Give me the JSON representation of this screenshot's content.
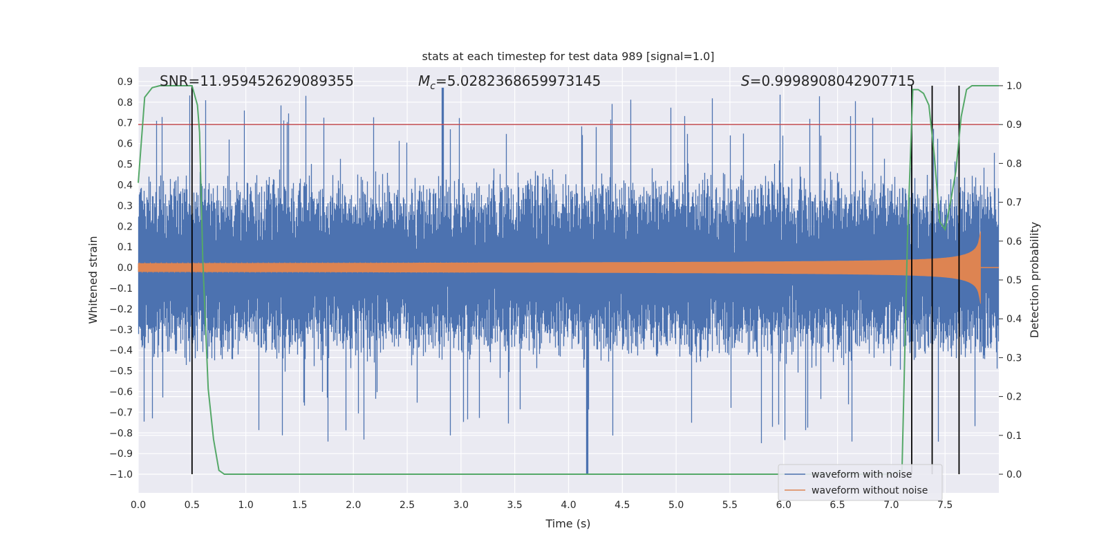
{
  "chart_data": {
    "type": "line",
    "title": "stats at each timestep for test data 989 [signal=1.0]",
    "xlabel": "Time (s)",
    "ylabel": "Whitened strain",
    "y2label": "Detection probability",
    "xlim": [
      0.0,
      8.0
    ],
    "ylim": [
      -1.09,
      0.97
    ],
    "y2lim": [
      -0.048,
      1.048
    ],
    "xticks": [
      "0.0",
      "0.5",
      "1.0",
      "1.5",
      "2.0",
      "2.5",
      "3.0",
      "3.5",
      "4.0",
      "4.5",
      "5.0",
      "5.5",
      "6.0",
      "6.5",
      "7.0",
      "7.5"
    ],
    "yticks": [
      "0.9",
      "0.8",
      "0.7",
      "0.6",
      "0.5",
      "0.4",
      "0.3",
      "0.2",
      "0.1",
      "0.0",
      "-0.1",
      "-0.2",
      "-0.3",
      "-0.4",
      "-0.5",
      "-0.6",
      "-0.7",
      "-0.8",
      "-0.9",
      "-1.0"
    ],
    "y2ticks": [
      "0.0",
      "0.1",
      "0.2",
      "0.3",
      "0.4",
      "0.5",
      "0.6",
      "0.7",
      "0.8",
      "0.9",
      "1.0"
    ],
    "grid": true,
    "legend_position": "bottom-right",
    "annotations": {
      "snr": "SNR=11.959452629089355",
      "mc_symbol": "M",
      "mc_sub": "c",
      "mc_value": "=5.0282368659973145",
      "s_symbol": "S",
      "s_value": "=0.9998908042907715"
    },
    "series": [
      {
        "name": "waveform with noise",
        "color": "#4c72b0",
        "kind": "noise_band",
        "typical_amplitude": 0.45,
        "peak_max": 0.87,
        "peak_min": -1.0
      },
      {
        "name": "waveform without noise",
        "color": "#dd8452",
        "kind": "chirp",
        "start_amplitude": 0.02,
        "peak_amplitude": 0.33,
        "merger_time": 7.83,
        "end_time": 8.0
      }
    ],
    "detection_probability": {
      "color": "#55a868",
      "x": [
        0.0,
        0.06,
        0.13,
        0.2,
        0.3,
        0.4,
        0.5,
        0.55,
        0.57,
        0.6,
        0.65,
        0.7,
        0.75,
        0.8,
        0.85,
        1.0,
        2.0,
        3.0,
        4.0,
        5.0,
        6.0,
        7.0,
        7.1,
        7.15,
        7.2,
        7.25,
        7.3,
        7.35,
        7.4,
        7.45,
        7.5,
        7.55,
        7.6,
        7.65,
        7.7,
        7.75,
        7.8,
        7.9,
        8.0
      ],
      "y": [
        0.75,
        0.97,
        0.995,
        1.0,
        1.0,
        1.0,
        1.0,
        0.95,
        0.88,
        0.55,
        0.22,
        0.09,
        0.01,
        0.0,
        0.0,
        0.0,
        0.0,
        0.0,
        0.0,
        0.0,
        0.0,
        0.0,
        0.01,
        0.6,
        0.99,
        0.99,
        0.98,
        0.95,
        0.82,
        0.65,
        0.63,
        0.7,
        0.78,
        0.92,
        0.99,
        1.0,
        1.0,
        1.0,
        1.0
      ]
    },
    "threshold": {
      "color": "#c44e52",
      "value": 0.9
    },
    "detection_markers": {
      "color": "#000000",
      "times": [
        0.5,
        7.19,
        7.38,
        7.63
      ],
      "y_range": [
        0.0,
        1.0
      ]
    }
  }
}
